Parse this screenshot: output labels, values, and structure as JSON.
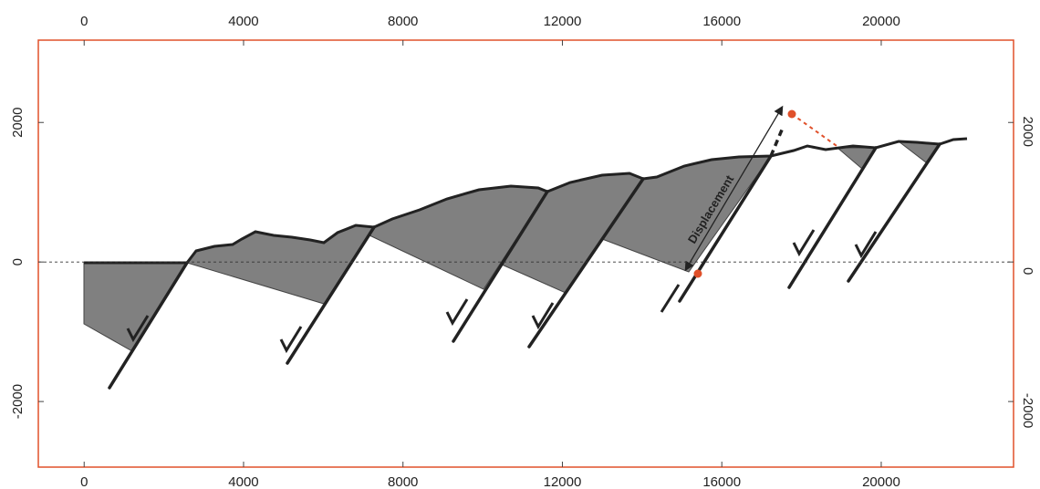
{
  "chart_data": {
    "type": "cross-section",
    "annotation": "Displacement",
    "xlim": [
      -1150,
      23320
    ],
    "ylim": [
      -2940,
      3180
    ],
    "xticks": [
      0,
      4000,
      8000,
      12000,
      16000,
      20000
    ],
    "yticks": [
      -2000,
      0,
      2000
    ],
    "reference_line": 0,
    "frame_color": "#e0502a"
  }
}
